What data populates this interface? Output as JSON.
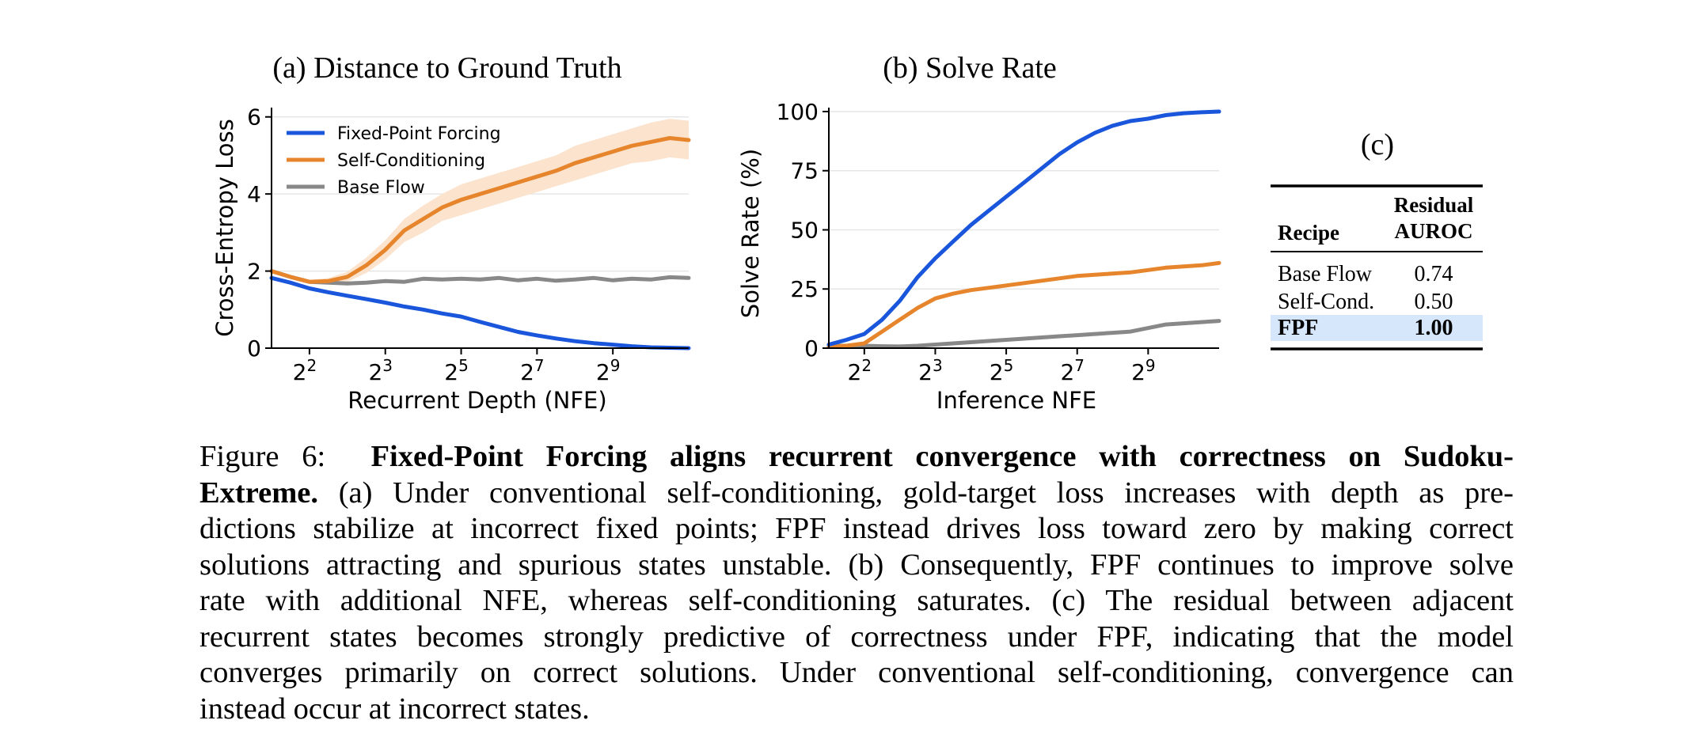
{
  "colors": {
    "fpf": "#1a56db",
    "self_cond": "#e6852c",
    "self_cond_band": "#fbe3cd",
    "base_flow": "#888888",
    "grid": "#e6e6e6",
    "highlight_row": "#d6e6fb"
  },
  "chart_data": [
    {
      "type": "line",
      "panel": "a",
      "title": "(a) Distance to Ground Truth",
      "xlabel": "Recurrent Depth (NFE)",
      "ylabel": "Cross-Entropy Loss",
      "x_scale": "log2",
      "xlim": [
        1,
        2048
      ],
      "ylim": [
        0,
        6.2
      ],
      "x_ticks": [
        2,
        8,
        32,
        128,
        512
      ],
      "x_tick_labels": [
        "2",
        "3",
        "5",
        "7",
        "9"
      ],
      "x_tick_base": "2",
      "y_ticks": [
        0,
        2,
        4,
        6
      ],
      "y_tick_labels": [
        "0",
        "2",
        "4",
        "6"
      ],
      "grid": "horizontal",
      "legend": "top-left",
      "x": [
        1,
        1.41,
        2,
        2.83,
        4,
        5.66,
        8,
        11.3,
        16,
        22.6,
        32,
        45.3,
        64,
        90.5,
        128,
        181,
        256,
        362,
        512,
        724,
        1024,
        1448,
        2048
      ],
      "series": [
        {
          "name": "Fixed-Point Forcing",
          "color_key": "fpf",
          "values": [
            1.82,
            1.7,
            1.55,
            1.45,
            1.36,
            1.27,
            1.18,
            1.08,
            1.0,
            0.9,
            0.82,
            0.68,
            0.55,
            0.42,
            0.33,
            0.25,
            0.18,
            0.13,
            0.09,
            0.05,
            0.02,
            0.01,
            0.0
          ]
        },
        {
          "name": "Self-Conditioning",
          "color_key": "self_cond",
          "values": [
            2.0,
            1.85,
            1.72,
            1.74,
            1.85,
            2.15,
            2.55,
            3.05,
            3.35,
            3.65,
            3.85,
            4.0,
            4.15,
            4.3,
            4.45,
            4.6,
            4.8,
            4.95,
            5.1,
            5.25,
            5.35,
            5.45,
            5.4
          ],
          "band_low": [
            1.95,
            1.8,
            1.67,
            1.66,
            1.72,
            1.95,
            2.3,
            2.75,
            3.0,
            3.3,
            3.45,
            3.6,
            3.75,
            3.9,
            4.05,
            4.2,
            4.35,
            4.5,
            4.65,
            4.8,
            4.85,
            4.95,
            4.9
          ],
          "band_high": [
            2.05,
            1.9,
            1.77,
            1.82,
            1.98,
            2.35,
            2.8,
            3.35,
            3.7,
            4.0,
            4.25,
            4.4,
            4.55,
            4.7,
            4.85,
            5.0,
            5.25,
            5.4,
            5.55,
            5.7,
            5.85,
            5.95,
            5.9
          ]
        },
        {
          "name": "Base Flow",
          "color_key": "base_flow",
          "values": [
            2.0,
            1.85,
            1.72,
            1.7,
            1.68,
            1.7,
            1.74,
            1.72,
            1.8,
            1.78,
            1.8,
            1.78,
            1.82,
            1.76,
            1.8,
            1.75,
            1.78,
            1.82,
            1.76,
            1.8,
            1.78,
            1.84,
            1.82
          ]
        }
      ]
    },
    {
      "type": "line",
      "panel": "b",
      "title": "(b) Solve Rate",
      "xlabel": "Inference NFE",
      "ylabel": "Solve Rate (%)",
      "x_scale": "log2",
      "xlim": [
        1,
        2048
      ],
      "ylim": [
        0,
        101
      ],
      "x_ticks": [
        2,
        8,
        32,
        128,
        512
      ],
      "x_tick_labels": [
        "2",
        "3",
        "5",
        "7",
        "9"
      ],
      "x_tick_base": "2",
      "y_ticks": [
        0,
        25,
        50,
        75,
        100
      ],
      "y_tick_labels": [
        "0",
        "25",
        "50",
        "75",
        "100"
      ],
      "grid": "horizontal",
      "x": [
        1,
        1.41,
        2,
        2.83,
        4,
        5.66,
        8,
        11.3,
        16,
        22.6,
        32,
        45.3,
        64,
        90.5,
        128,
        181,
        256,
        362,
        512,
        724,
        1024,
        1448,
        2048
      ],
      "series": [
        {
          "name": "Fixed-Point Forcing",
          "color_key": "fpf",
          "values": [
            1.5,
            3.5,
            6,
            12,
            20,
            30,
            38,
            45,
            52,
            58,
            64,
            70,
            76,
            82,
            87,
            91,
            94,
            96,
            97,
            98.5,
            99.3,
            99.7,
            100
          ]
        },
        {
          "name": "Self-Conditioning",
          "color_key": "self_cond",
          "values": [
            0.5,
            1,
            2,
            7,
            12,
            17,
            21,
            23,
            24.5,
            25.5,
            26.5,
            27.5,
            28.5,
            29.5,
            30.5,
            31,
            31.5,
            32,
            33,
            34,
            34.5,
            35,
            36
          ]
        },
        {
          "name": "Base Flow",
          "color_key": "base_flow",
          "values": [
            1,
            1,
            1,
            0.8,
            0.7,
            1,
            1.5,
            2,
            2.5,
            3,
            3.5,
            4,
            4.5,
            5,
            5.5,
            6,
            6.5,
            7,
            8.5,
            10,
            10.5,
            11,
            11.5
          ]
        }
      ]
    },
    {
      "type": "table",
      "panel": "c",
      "title": "(c)",
      "columns": [
        "Recipe",
        "Residual AUROC"
      ],
      "column_header_lines": [
        [
          "Recipe"
        ],
        [
          "Residual",
          "AUROC"
        ]
      ],
      "rows": [
        [
          "Base Flow",
          "0.74"
        ],
        [
          "Self-Cond.",
          "0.50"
        ],
        [
          "FPF",
          "1.00"
        ]
      ],
      "highlight_row": 2
    }
  ],
  "caption": {
    "label": "Figure 6:",
    "bold": "Fixed-Point Forcing aligns recurrent convergence with correctness on Sudoku-Extreme.",
    "bold_line1": "Fixed-Point Forcing aligns recurrent convergence with correctness on Sudoku-",
    "bold_line2": "Extreme.",
    "lines": [
      "(a) Under conventional self-conditioning, gold-target loss increases with depth as pre-",
      "dictions stabilize at incorrect fixed points; FPF instead drives loss toward zero by making correct",
      "solutions attracting and spurious states unstable. (b) Consequently, FPF continues to improve solve",
      "rate with additional NFE, whereas self-conditioning saturates. (c) The residual between adjacent",
      "recurrent states becomes strongly predictive of correctness under FPF, indicating that the model",
      "converges primarily on correct solutions. Under conventional self-conditioning, convergence can",
      "instead occur at incorrect states."
    ]
  }
}
